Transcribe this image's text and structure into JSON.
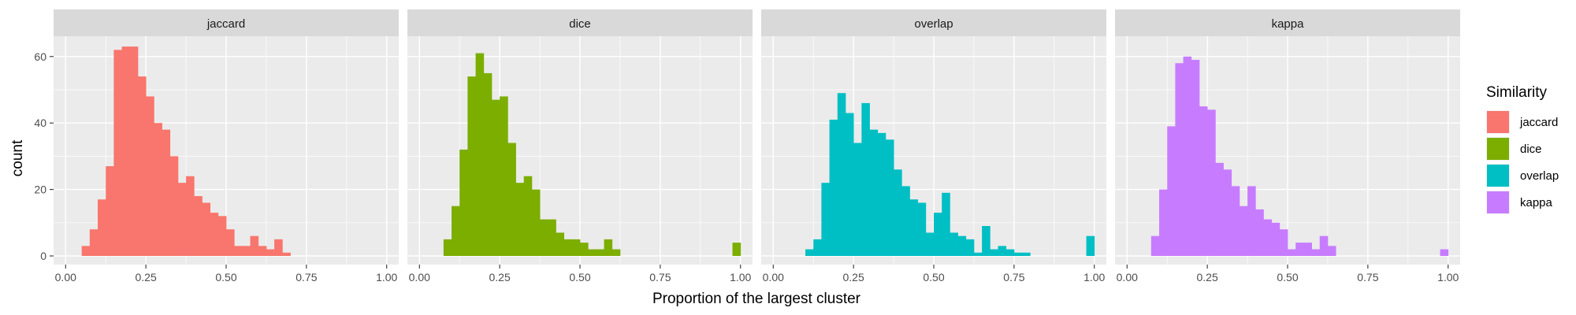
{
  "chart_data": {
    "type": "bar",
    "subtype": "faceted-histogram",
    "xlabel": "Proportion of the largest cluster",
    "ylabel": "count",
    "xlim": [
      0.0,
      1.0
    ],
    "ylim": [
      0,
      65
    ],
    "x_ticks": [
      "0.00",
      "0.25",
      "0.50",
      "0.75",
      "1.00"
    ],
    "y_ticks": [
      "0",
      "20",
      "40",
      "60"
    ],
    "bin_width": 0.025,
    "grid": true,
    "legend": {
      "title": "Similarity",
      "position": "right",
      "entries": [
        "jaccard",
        "dice",
        "overlap",
        "kappa"
      ]
    },
    "facets": [
      {
        "name": "jaccard",
        "color": "#F8766D",
        "bins": [
          {
            "x0": 0.05,
            "count": 3
          },
          {
            "x0": 0.075,
            "count": 8
          },
          {
            "x0": 0.1,
            "count": 17
          },
          {
            "x0": 0.125,
            "count": 27
          },
          {
            "x0": 0.15,
            "count": 62
          },
          {
            "x0": 0.175,
            "count": 63
          },
          {
            "x0": 0.2,
            "count": 63
          },
          {
            "x0": 0.225,
            "count": 54
          },
          {
            "x0": 0.25,
            "count": 48
          },
          {
            "x0": 0.275,
            "count": 40
          },
          {
            "x0": 0.3,
            "count": 38
          },
          {
            "x0": 0.325,
            "count": 30
          },
          {
            "x0": 0.35,
            "count": 22
          },
          {
            "x0": 0.375,
            "count": 24
          },
          {
            "x0": 0.4,
            "count": 18
          },
          {
            "x0": 0.425,
            "count": 16
          },
          {
            "x0": 0.45,
            "count": 13
          },
          {
            "x0": 0.475,
            "count": 12
          },
          {
            "x0": 0.5,
            "count": 8
          },
          {
            "x0": 0.525,
            "count": 3
          },
          {
            "x0": 0.55,
            "count": 3
          },
          {
            "x0": 0.575,
            "count": 6
          },
          {
            "x0": 0.6,
            "count": 3
          },
          {
            "x0": 0.625,
            "count": 2
          },
          {
            "x0": 0.65,
            "count": 5
          },
          {
            "x0": 0.675,
            "count": 1
          }
        ]
      },
      {
        "name": "dice",
        "color": "#7CAE00",
        "bins": [
          {
            "x0": 0.075,
            "count": 5
          },
          {
            "x0": 0.1,
            "count": 15
          },
          {
            "x0": 0.125,
            "count": 32
          },
          {
            "x0": 0.15,
            "count": 54
          },
          {
            "x0": 0.175,
            "count": 61
          },
          {
            "x0": 0.2,
            "count": 55
          },
          {
            "x0": 0.225,
            "count": 47
          },
          {
            "x0": 0.25,
            "count": 48
          },
          {
            "x0": 0.275,
            "count": 34
          },
          {
            "x0": 0.3,
            "count": 22
          },
          {
            "x0": 0.325,
            "count": 24
          },
          {
            "x0": 0.35,
            "count": 20
          },
          {
            "x0": 0.375,
            "count": 11
          },
          {
            "x0": 0.4,
            "count": 11
          },
          {
            "x0": 0.425,
            "count": 7
          },
          {
            "x0": 0.45,
            "count": 5
          },
          {
            "x0": 0.475,
            "count": 5
          },
          {
            "x0": 0.5,
            "count": 4
          },
          {
            "x0": 0.525,
            "count": 2
          },
          {
            "x0": 0.55,
            "count": 2
          },
          {
            "x0": 0.575,
            "count": 5
          },
          {
            "x0": 0.6,
            "count": 2
          },
          {
            "x0": 0.975,
            "count": 4
          }
        ]
      },
      {
        "name": "overlap",
        "color": "#00BFC4",
        "bins": [
          {
            "x0": 0.1,
            "count": 2
          },
          {
            "x0": 0.125,
            "count": 5
          },
          {
            "x0": 0.15,
            "count": 22
          },
          {
            "x0": 0.175,
            "count": 41
          },
          {
            "x0": 0.2,
            "count": 49
          },
          {
            "x0": 0.225,
            "count": 43
          },
          {
            "x0": 0.25,
            "count": 34
          },
          {
            "x0": 0.275,
            "count": 46
          },
          {
            "x0": 0.3,
            "count": 38
          },
          {
            "x0": 0.325,
            "count": 37
          },
          {
            "x0": 0.35,
            "count": 35
          },
          {
            "x0": 0.375,
            "count": 26
          },
          {
            "x0": 0.4,
            "count": 21
          },
          {
            "x0": 0.425,
            "count": 17
          },
          {
            "x0": 0.45,
            "count": 16
          },
          {
            "x0": 0.475,
            "count": 7
          },
          {
            "x0": 0.5,
            "count": 13
          },
          {
            "x0": 0.525,
            "count": 19
          },
          {
            "x0": 0.55,
            "count": 7
          },
          {
            "x0": 0.575,
            "count": 6
          },
          {
            "x0": 0.6,
            "count": 5
          },
          {
            "x0": 0.625,
            "count": 1
          },
          {
            "x0": 0.65,
            "count": 9
          },
          {
            "x0": 0.675,
            "count": 2
          },
          {
            "x0": 0.7,
            "count": 3
          },
          {
            "x0": 0.725,
            "count": 2
          },
          {
            "x0": 0.75,
            "count": 1
          },
          {
            "x0": 0.775,
            "count": 1
          },
          {
            "x0": 0.975,
            "count": 6
          }
        ]
      },
      {
        "name": "kappa",
        "color": "#C77CFF",
        "bins": [
          {
            "x0": 0.075,
            "count": 6
          },
          {
            "x0": 0.1,
            "count": 20
          },
          {
            "x0": 0.125,
            "count": 39
          },
          {
            "x0": 0.15,
            "count": 58
          },
          {
            "x0": 0.175,
            "count": 60
          },
          {
            "x0": 0.2,
            "count": 59
          },
          {
            "x0": 0.225,
            "count": 45
          },
          {
            "x0": 0.25,
            "count": 44
          },
          {
            "x0": 0.275,
            "count": 28
          },
          {
            "x0": 0.3,
            "count": 26
          },
          {
            "x0": 0.325,
            "count": 21
          },
          {
            "x0": 0.35,
            "count": 15
          },
          {
            "x0": 0.375,
            "count": 21
          },
          {
            "x0": 0.4,
            "count": 14
          },
          {
            "x0": 0.425,
            "count": 11
          },
          {
            "x0": 0.45,
            "count": 10
          },
          {
            "x0": 0.475,
            "count": 8
          },
          {
            "x0": 0.5,
            "count": 2
          },
          {
            "x0": 0.525,
            "count": 4
          },
          {
            "x0": 0.55,
            "count": 4
          },
          {
            "x0": 0.575,
            "count": 2
          },
          {
            "x0": 0.6,
            "count": 6
          },
          {
            "x0": 0.625,
            "count": 3
          },
          {
            "x0": 0.975,
            "count": 2
          }
        ]
      }
    ]
  }
}
